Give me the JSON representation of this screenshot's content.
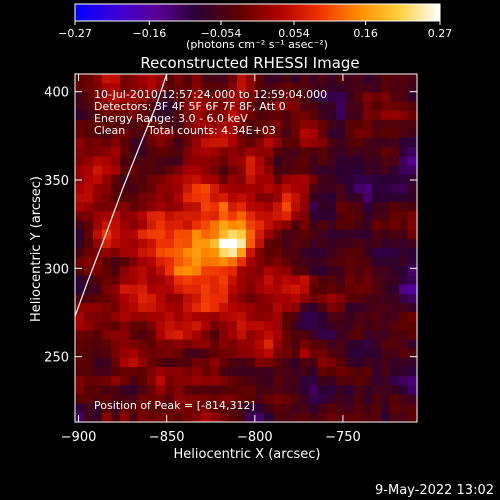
{
  "chart_data": {
    "type": "heatmap",
    "title": "Reconstructed RHESSI Image",
    "xlabel": "Heliocentric X (arcsec)",
    "ylabel": "Heliocentric Y (arcsec)",
    "xlim": [
      -902,
      -708
    ],
    "ylim": [
      213,
      410
    ],
    "x_ticks": [
      -900,
      -850,
      -800,
      -750
    ],
    "x_tick_labels": [
      "−900",
      "−850",
      "−800",
      "−750"
    ],
    "y_ticks": [
      250,
      300,
      350,
      400
    ],
    "y_tick_labels": [
      "250",
      "300",
      "350",
      "400"
    ],
    "grid": false,
    "annotations": {
      "time_range": "10-Jul-2010 12:57:24.000 to 12:59:04.000",
      "detectors": "Detectors: 3F 4F 5F 6F 7F 8F, Att 0",
      "energy_range": "Energy Range: 3.0 - 6.0 keV",
      "algorithm": "Clean",
      "total_counts": "Total counts: 4.34E+03",
      "peak_position": "Position of Peak = [-814,312]"
    },
    "peak": {
      "x": -814,
      "y": 312
    },
    "colorbar": {
      "min": -0.27,
      "max": 0.27,
      "tick_labels": [
        "−0.27",
        "−0.16",
        "−0.054",
        "0.054",
        "0.16",
        "0.27"
      ],
      "tick_values": [
        -0.27,
        -0.16,
        -0.054,
        0.054,
        0.16,
        0.27
      ],
      "unit_label": "(photons cm⁻² s⁻¹ asec⁻²)",
      "colormap": [
        "#0000ff",
        "#3a00d8",
        "#5a0096",
        "#2a0032",
        "#5a0000",
        "#aa0000",
        "#ee3000",
        "#ff8c00",
        "#ffd040",
        "#ffffff"
      ]
    },
    "limb_curve": [
      [
        -903,
        270
      ],
      [
        -895,
        292
      ],
      [
        -885,
        318
      ],
      [
        -875,
        345
      ],
      [
        -865,
        370
      ],
      [
        -856,
        392
      ],
      [
        -850,
        410
      ]
    ]
  },
  "footer": {
    "date": "9-May-2022 13:02"
  }
}
